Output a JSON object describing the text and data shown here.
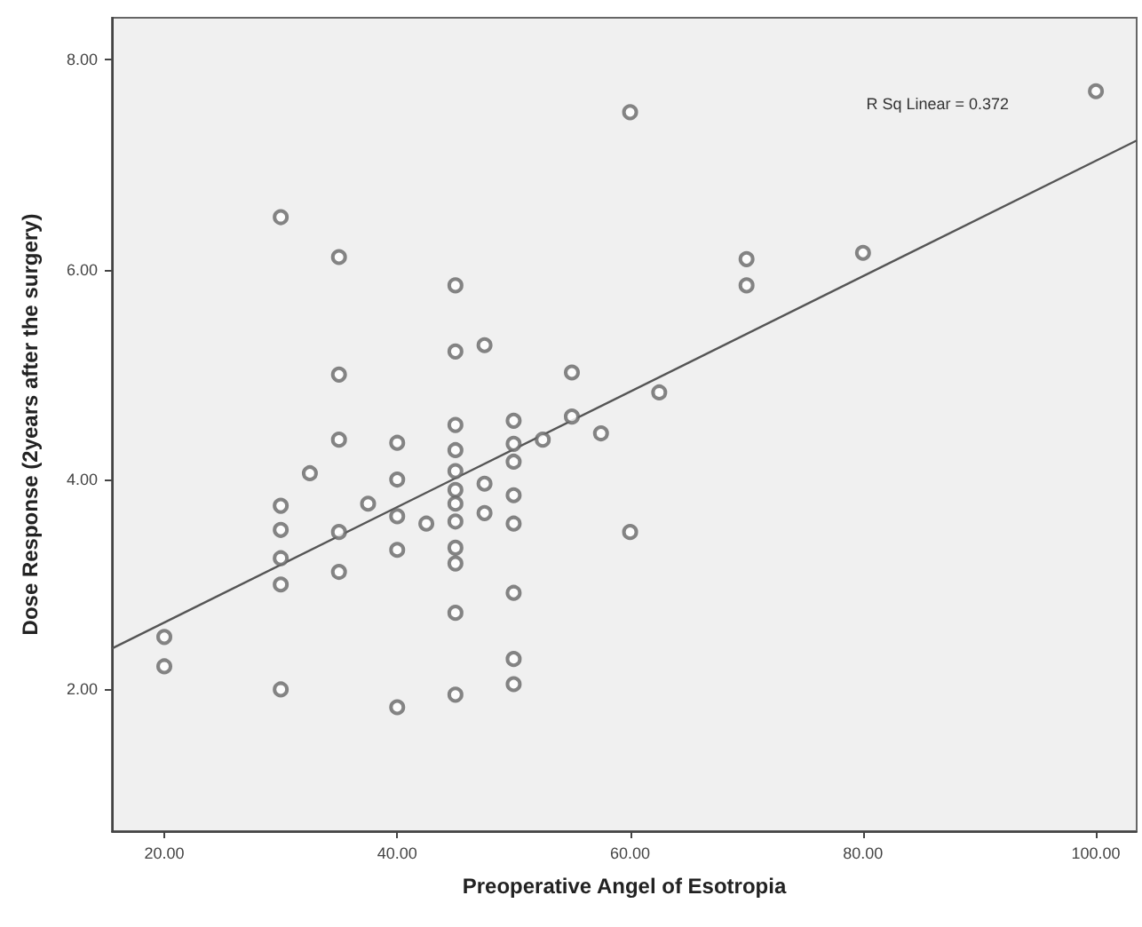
{
  "chart_data": {
    "type": "scatter",
    "xlabel": "Preoperative Angel of Esotropia",
    "ylabel": "Dose Response (2years after the surgery)",
    "xlim": [
      15.5,
      103.5
    ],
    "ylim": [
      0.65,
      8.4
    ],
    "xticks": [
      {
        "value": 20,
        "label": "20.00"
      },
      {
        "value": 40,
        "label": "40.00"
      },
      {
        "value": 60,
        "label": "60.00"
      },
      {
        "value": 80,
        "label": "80.00"
      },
      {
        "value": 100,
        "label": "100.00"
      }
    ],
    "yticks": [
      {
        "value": 2,
        "label": "2.00"
      },
      {
        "value": 4,
        "label": "4.00"
      },
      {
        "value": 6,
        "label": "6.00"
      },
      {
        "value": 8,
        "label": "8.00"
      }
    ],
    "grid": false,
    "marker": "circle",
    "annotations": [
      "R Sq Linear = 0.372"
    ],
    "series": [
      {
        "color": "#666666",
        "x": [
          20,
          20,
          30,
          30,
          30,
          30,
          30,
          30,
          35,
          35,
          35,
          35,
          35,
          32.5,
          40,
          40,
          40,
          40,
          40,
          37.5,
          42.5,
          45,
          45,
          45,
          45,
          45,
          45,
          45,
          45,
          45,
          45,
          45,
          45,
          47.5,
          47.5,
          47.5,
          50,
          50,
          50,
          50,
          50,
          50,
          50,
          50,
          52.5,
          55,
          55,
          57.5,
          62.5,
          60,
          60,
          70,
          70,
          80,
          100
        ],
        "values": [
          2.5,
          2.22,
          6.5,
          3.75,
          3.52,
          3.25,
          3.0,
          2.0,
          6.12,
          5.0,
          4.38,
          3.5,
          3.12,
          4.06,
          4.35,
          4.0,
          3.65,
          3.33,
          1.83,
          3.77,
          3.58,
          5.85,
          5.22,
          4.52,
          4.28,
          4.08,
          3.9,
          3.77,
          3.6,
          3.35,
          3.2,
          2.73,
          1.95,
          5.28,
          3.96,
          3.68,
          4.56,
          4.34,
          4.17,
          3.85,
          3.58,
          2.92,
          2.29,
          2.05,
          4.38,
          5.02,
          4.6,
          4.44,
          4.83,
          7.5,
          3.5,
          6.1,
          5.85,
          6.16,
          7.7
        ]
      },
      {
        "type": "line",
        "color": "#555555",
        "marker": "none",
        "line_style": "solid",
        "x": [
          15.5,
          103.5
        ],
        "values": [
          2.39,
          7.23
        ]
      }
    ]
  }
}
